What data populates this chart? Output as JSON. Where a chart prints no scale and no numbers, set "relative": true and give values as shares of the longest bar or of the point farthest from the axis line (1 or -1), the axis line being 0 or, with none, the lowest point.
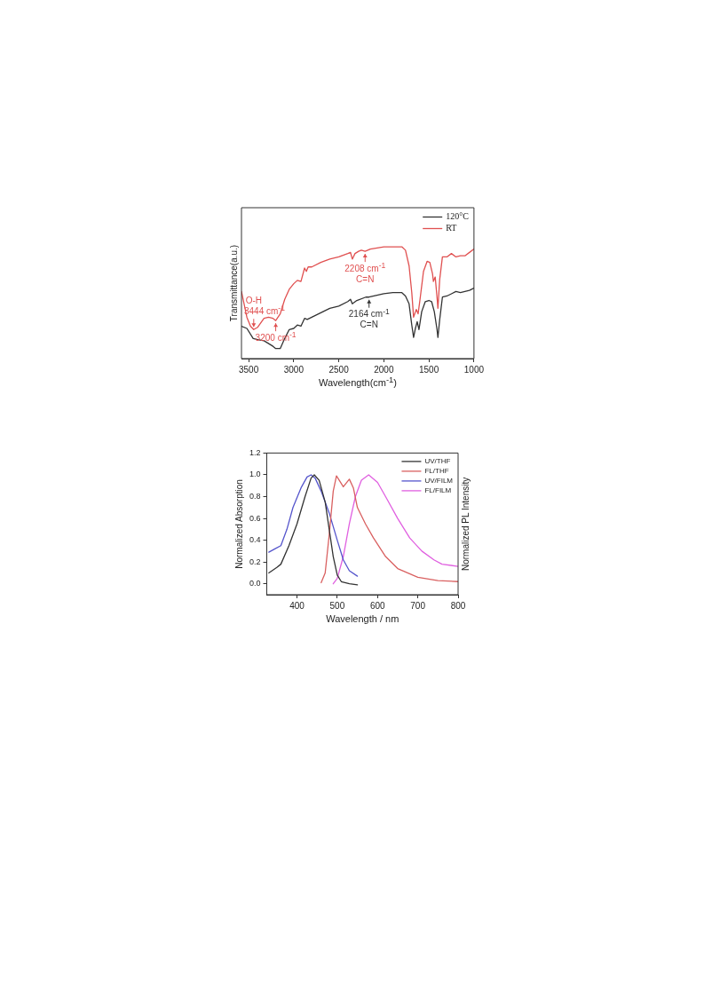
{
  "chart_data": [
    {
      "type": "line",
      "xlabel": "Wavelength(cm$^{-1}$)",
      "ylabel": "Transmittance(a.u.)",
      "relative": true,
      "xlim": [
        3580,
        1000
      ],
      "xticks": [
        3500,
        3000,
        2500,
        2000,
        1500,
        1000
      ],
      "x": [
        3580,
        3520,
        3480,
        3444,
        3400,
        3330,
        3280,
        3230,
        3200,
        3150,
        3100,
        3050,
        3000,
        2960,
        2920,
        2880,
        2860,
        2840,
        2800,
        2700,
        2600,
        2500,
        2400,
        2370,
        2350,
        2320,
        2280,
        2250,
        2208,
        2150,
        2000,
        1900,
        1800,
        1760,
        1720,
        1690,
        1670,
        1640,
        1620,
        1600,
        1560,
        1520,
        1490,
        1460,
        1450,
        1430,
        1410,
        1400,
        1380,
        1350,
        1300,
        1250,
        1200,
        1150,
        1100,
        1050,
        1000
      ],
      "series": [
        {
          "name": "120°C",
          "color": "#333333",
          "x": [
            3580,
            3520,
            3450,
            3400,
            3330,
            3270,
            3230,
            3200,
            3150,
            3100,
            3050,
            3000,
            2960,
            2920,
            2880,
            2850,
            2800,
            2700,
            2600,
            2500,
            2400,
            2370,
            2350,
            2300,
            2200,
            2164,
            2000,
            1900,
            1800,
            1760,
            1720,
            1690,
            1670,
            1650,
            1630,
            1610,
            1580,
            1540,
            1500,
            1470,
            1440,
            1410,
            1400,
            1380,
            1350,
            1300,
            1250,
            1200,
            1150,
            1100,
            1050,
            1000
          ],
          "values": [
            0.29,
            0.27,
            0.18,
            0.17,
            0.16,
            0.13,
            0.11,
            0.09,
            0.09,
            0.18,
            0.26,
            0.27,
            0.3,
            0.29,
            0.36,
            0.35,
            0.37,
            0.41,
            0.45,
            0.47,
            0.51,
            0.53,
            0.49,
            0.52,
            0.55,
            0.55,
            0.58,
            0.59,
            0.59,
            0.56,
            0.49,
            0.3,
            0.19,
            0.27,
            0.33,
            0.26,
            0.42,
            0.51,
            0.52,
            0.51,
            0.42,
            0.26,
            0.19,
            0.35,
            0.55,
            0.56,
            0.58,
            0.6,
            0.59,
            0.6,
            0.61,
            0.63
          ]
        },
        {
          "name": "RT",
          "color": "#e05050",
          "values": [
            0.6,
            0.37,
            0.29,
            0.26,
            0.28,
            0.36,
            0.37,
            0.36,
            0.34,
            0.4,
            0.53,
            0.62,
            0.67,
            0.7,
            0.69,
            0.81,
            0.78,
            0.82,
            0.82,
            0.86,
            0.89,
            0.91,
            0.94,
            0.95,
            0.89,
            0.94,
            0.96,
            0.97,
            0.96,
            0.98,
            1.0,
            1.0,
            1.0,
            0.97,
            0.83,
            0.59,
            0.37,
            0.44,
            0.4,
            0.52,
            0.78,
            0.87,
            0.86,
            0.76,
            0.69,
            0.73,
            0.55,
            0.45,
            0.71,
            0.91,
            0.91,
            0.94,
            0.91,
            0.92,
            0.92,
            0.95,
            0.98
          ]
        }
      ],
      "annotations": [
        {
          "text": "O-H",
          "x": 3444,
          "y": 0.26
        },
        {
          "text": "3444 cm$^{-1}$",
          "x": 3444,
          "y": 0.26
        },
        {
          "text": "3200 cm$^{-1}$",
          "x": 3200,
          "y": 0.34
        },
        {
          "text": "2208 cm$^{-1}$",
          "x": 2208,
          "y": 0.96
        },
        {
          "text": "C=N",
          "x": 2208,
          "y": 0.96
        },
        {
          "text": "2164 cm$^{-1}$",
          "x": 2164,
          "y": 0.55
        },
        {
          "text": "C=N",
          "x": 2164,
          "y": 0.55
        }
      ],
      "legend": "top right",
      "grid": false,
      "marker": "none",
      "line_style": "solid"
    },
    {
      "type": "line",
      "xlabel": "Wavelength / nm",
      "ylabel": "Normalized Absorption",
      "y2label": "Normalized PL Intensity",
      "xlim": [
        325,
        800
      ],
      "xticks": [
        400,
        500,
        600,
        700,
        800
      ],
      "ylim": [
        -0.1,
        1.2
      ],
      "yticks": [
        {
          "value": 0,
          "label": "0.0"
        },
        {
          "value": 0.2,
          "label": "0.2"
        },
        {
          "value": 0.4,
          "label": "0.4"
        },
        {
          "value": 0.6,
          "label": "0.6"
        },
        {
          "value": 0.8,
          "label": "0.8"
        },
        {
          "value": 1,
          "label": "1.0"
        },
        {
          "value": 1.2,
          "label": "1.2"
        }
      ],
      "series": [
        {
          "name": "UV/THF",
          "color": "#333333",
          "x": [
            330,
            350,
            360,
            380,
            400,
            420,
            435,
            443,
            455,
            470,
            480,
            490,
            500,
            510,
            530,
            550
          ],
          "values": [
            0.1,
            0.15,
            0.18,
            0.35,
            0.55,
            0.8,
            0.97,
            1.0,
            0.95,
            0.75,
            0.5,
            0.25,
            0.08,
            0.02,
            0.0,
            -0.01
          ]
        },
        {
          "name": "FL/THF",
          "color": "#d96060",
          "x": [
            460,
            470,
            480,
            490,
            498,
            505,
            515,
            530,
            540,
            550,
            570,
            590,
            620,
            650,
            700,
            750,
            800
          ],
          "values": [
            0.01,
            0.1,
            0.45,
            0.85,
            0.99,
            0.95,
            0.89,
            0.96,
            0.88,
            0.7,
            0.55,
            0.42,
            0.25,
            0.14,
            0.06,
            0.03,
            0.02
          ]
        },
        {
          "name": "UV/FILM",
          "color": "#5555cc",
          "x": [
            330,
            345,
            360,
            375,
            390,
            410,
            425,
            435,
            445,
            460,
            480,
            500,
            515,
            530,
            550
          ],
          "values": [
            0.29,
            0.32,
            0.35,
            0.5,
            0.7,
            0.88,
            0.98,
            1.0,
            0.97,
            0.85,
            0.65,
            0.4,
            0.22,
            0.12,
            0.07
          ]
        },
        {
          "name": "FL/FILM",
          "color": "#e060e0",
          "x": [
            490,
            500,
            515,
            530,
            545,
            560,
            578,
            600,
            620,
            650,
            680,
            710,
            740,
            760,
            800
          ],
          "values": [
            0.0,
            0.05,
            0.25,
            0.55,
            0.8,
            0.95,
            1.0,
            0.93,
            0.8,
            0.6,
            0.42,
            0.3,
            0.22,
            0.18,
            0.16
          ]
        }
      ],
      "legend": "top right",
      "grid": false,
      "marker": "none",
      "line_style": "solid"
    }
  ]
}
